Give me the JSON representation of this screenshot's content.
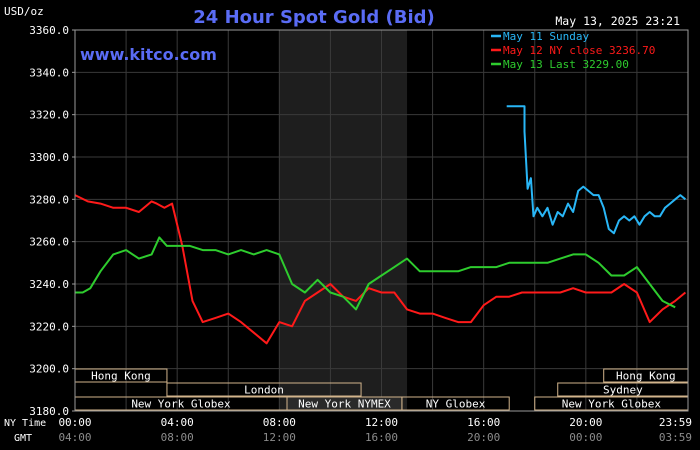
{
  "header": {
    "title": "24 Hour Spot Gold (Bid)",
    "unit": "USD/oz",
    "date": "May 13, 2025 23:21",
    "site": "www.kitco.com"
  },
  "colors": {
    "background": "#000000",
    "plot_background": "#000000",
    "shaded_region": "#1e1e1e",
    "grid": "#3a3a3a",
    "axis_text": "#ffffff",
    "title": "#5a6cf5",
    "site": "#5a6cf5",
    "session_box": "#d2b48c"
  },
  "chart_data": {
    "type": "line",
    "title": "24 Hour Spot Gold (Bid)",
    "ylabel": "USD/oz",
    "ylim": [
      3180,
      3360
    ],
    "yticks": [
      3180,
      3200,
      3220,
      3240,
      3260,
      3280,
      3300,
      3320,
      3340,
      3360
    ],
    "ytick_labels": [
      "3180.0",
      "3200.0",
      "3220.0",
      "3240.0",
      "3260.0",
      "3280.0",
      "3300.0",
      "3320.0",
      "3340.0",
      "3360.0"
    ],
    "xlim": [
      0,
      24
    ],
    "xticks": [
      0,
      4,
      8,
      12,
      16,
      20,
      24
    ],
    "xtick_ny_labels": [
      "00:00",
      "04:00",
      "08:00",
      "12:00",
      "16:00",
      "20:00",
      "23:59"
    ],
    "xtick_gmt_labels": [
      "04:00",
      "08:00",
      "12:00",
      "16:00",
      "20:00",
      "00:00",
      "03:59"
    ],
    "x_row_labels": {
      "ny": "NY Time",
      "gmt": "GMT"
    },
    "shaded_x": [
      8,
      13
    ],
    "grid": true,
    "legend_position": "top-right",
    "series": [
      {
        "name": "May 11 Sunday",
        "color": "#29b6f6",
        "x": [
          16.9,
          17.6,
          17.6,
          17.72,
          17.85,
          17.95,
          18.1,
          18.3,
          18.5,
          18.7,
          18.9,
          19.1,
          19.3,
          19.5,
          19.7,
          19.9,
          20.1,
          20.3,
          20.5,
          20.7,
          20.9,
          21.1,
          21.3,
          21.5,
          21.7,
          21.9,
          22.1,
          22.3,
          22.5,
          22.7,
          22.9,
          23.1,
          23.3,
          23.5,
          23.7,
          23.9
        ],
        "values": [
          3324,
          3324,
          3312,
          3285,
          3290,
          3272,
          3276,
          3272,
          3276,
          3268,
          3274,
          3272,
          3278,
          3274,
          3284,
          3286,
          3284,
          3282,
          3282,
          3276,
          3266,
          3264,
          3270,
          3272,
          3270,
          3272,
          3268,
          3272,
          3274,
          3272,
          3272,
          3276,
          3278,
          3280,
          3282,
          3280
        ]
      },
      {
        "name": "May 12 NY close 3236.70",
        "color": "#ff1a1a",
        "x": [
          0,
          0.5,
          1,
          1.5,
          2,
          2.5,
          3,
          3.2,
          3.5,
          3.8,
          4.2,
          4.6,
          5,
          5.5,
          6,
          6.5,
          7,
          7.5,
          8,
          8.5,
          9,
          9.5,
          10,
          10.5,
          11,
          11.5,
          12,
          12.5,
          13,
          13.5,
          14,
          14.5,
          15,
          15.5,
          16,
          16.5,
          17,
          17.5,
          18,
          18.5,
          19,
          19.5,
          20,
          20.5,
          21,
          21.5,
          22,
          22.5,
          23,
          23.5,
          23.9
        ],
        "values": [
          3282,
          3279,
          3278,
          3276,
          3276,
          3274,
          3279,
          3278,
          3276,
          3278,
          3258,
          3232,
          3222,
          3224,
          3226,
          3222,
          3217,
          3212,
          3222,
          3220,
          3232,
          3236,
          3240,
          3234,
          3232,
          3238,
          3236,
          3236,
          3228,
          3226,
          3226,
          3224,
          3222,
          3222,
          3230,
          3234,
          3234,
          3236,
          3236,
          3236,
          3236,
          3238,
          3236,
          3236,
          3236,
          3240,
          3236,
          3222,
          3228,
          3232,
          3236
        ]
      },
      {
        "name": "May 13 Last 3229.00",
        "color": "#2ecc2e",
        "x": [
          0,
          0.3,
          0.6,
          1,
          1.5,
          2,
          2.5,
          3,
          3.3,
          3.6,
          4,
          4.5,
          5,
          5.5,
          6,
          6.5,
          7,
          7.5,
          8,
          8.5,
          9,
          9.5,
          10,
          10.5,
          11,
          11.5,
          12,
          12.5,
          13,
          13.5,
          14,
          14.5,
          15,
          15.5,
          16,
          16.5,
          17,
          17.5,
          18,
          18.5,
          19,
          19.5,
          20,
          20.5,
          21,
          21.5,
          22,
          22.5,
          23,
          23.5
        ],
        "values": [
          3236,
          3236,
          3238,
          3246,
          3254,
          3256,
          3252,
          3254,
          3262,
          3258,
          3258,
          3258,
          3256,
          3256,
          3254,
          3256,
          3254,
          3256,
          3254,
          3240,
          3236,
          3242,
          3236,
          3234,
          3228,
          3240,
          3244,
          3248,
          3252,
          3246,
          3246,
          3246,
          3246,
          3248,
          3248,
          3248,
          3250,
          3250,
          3250,
          3250,
          3252,
          3254,
          3254,
          3250,
          3244,
          3244,
          3248,
          3240,
          3232,
          3229
        ]
      }
    ]
  },
  "sessions": [
    {
      "name": "Hong Kong",
      "row": 0,
      "start": 0,
      "end": 3.6,
      "fill": false
    },
    {
      "name": "London",
      "row": 1,
      "start": 3.6,
      "end": 11.2,
      "fill": false
    },
    {
      "name": "New York Globex",
      "row": 2,
      "start": 0,
      "end": 8.3,
      "fill": false
    },
    {
      "name": "New York NYMEX",
      "row": 2,
      "start": 8.3,
      "end": 12.8,
      "fill": true
    },
    {
      "name": "NY Globex",
      "row": 2,
      "start": 12.8,
      "end": 17,
      "fill": false
    },
    {
      "name": "Hong Kong",
      "row": 0,
      "start": 20.7,
      "end": 24,
      "fill": false
    },
    {
      "name": "Sydney",
      "row": 1,
      "start": 18.9,
      "end": 24,
      "fill": false
    },
    {
      "name": "New York Globex",
      "row": 2,
      "start": 18,
      "end": 24,
      "fill": false
    }
  ]
}
